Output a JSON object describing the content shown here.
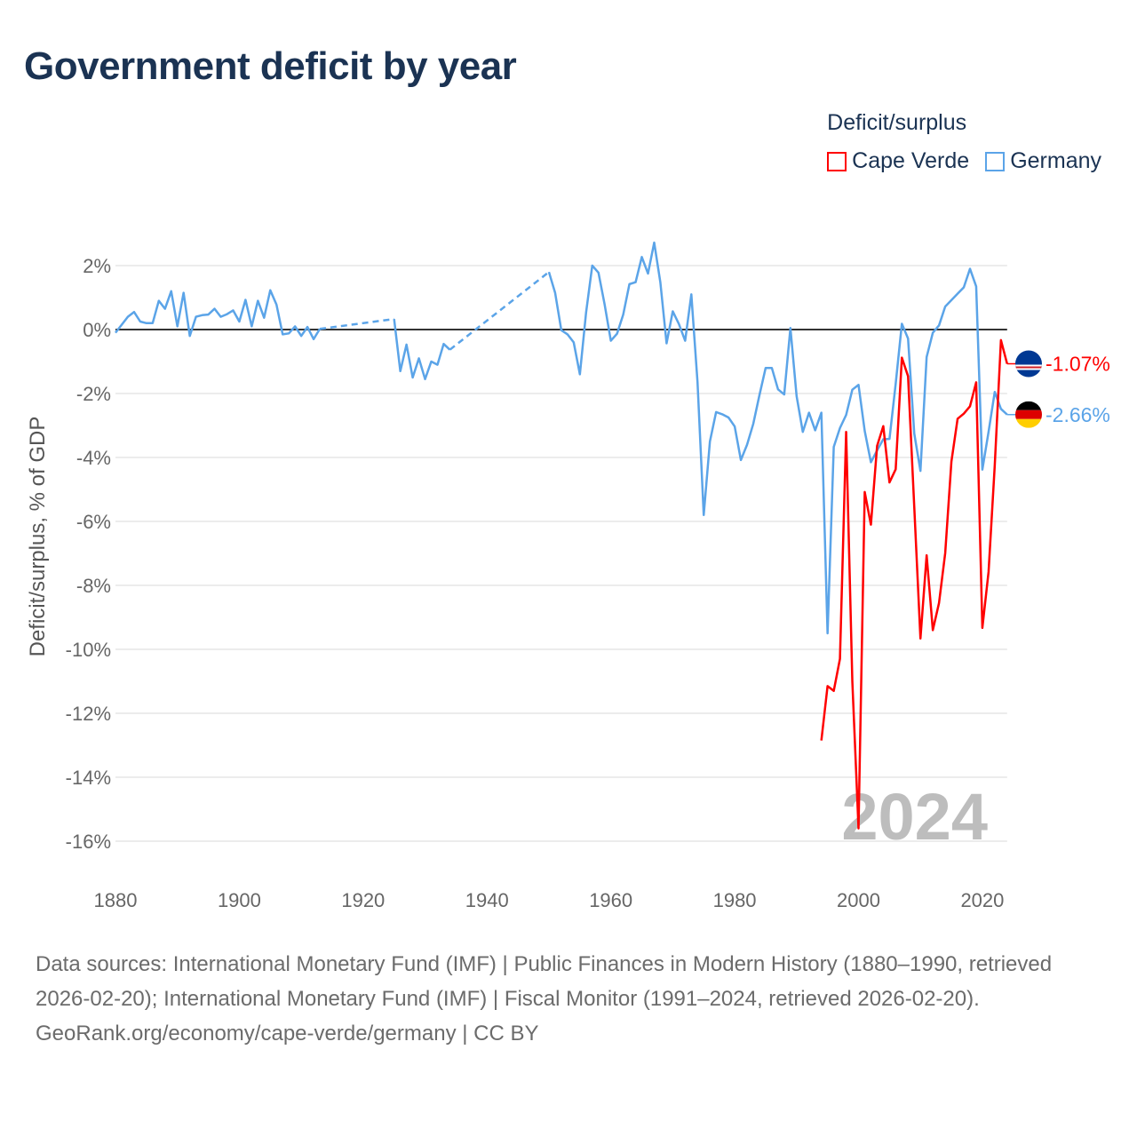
{
  "title": "Government deficit by year",
  "legend": {
    "title": "Deficit/surplus",
    "items": [
      {
        "name": "Cape Verde",
        "color": "#ff0000"
      },
      {
        "name": "Germany",
        "color": "#5ba4e8"
      }
    ]
  },
  "footer": {
    "sources": "Data sources: International Monetary Fund (IMF) | Public Finances in Modern History (1880–1990, retrieved 2026-02-20); International Monetary Fund (IMF) | Fiscal Monitor (1991–2024, retrieved 2026-02-20).",
    "credit": "GeoRank.org/economy/cape-verde/germany | CC BY"
  },
  "chart_data": {
    "type": "line",
    "title": "Government deficit by year",
    "xlabel": "",
    "ylabel": "Deficit/surplus, % of GDP",
    "xlim": [
      1880,
      2024
    ],
    "ylim": [
      -17,
      3
    ],
    "x_ticks": [
      "1880",
      "1900",
      "1920",
      "1940",
      "1960",
      "1980",
      "2000",
      "2020"
    ],
    "y_ticks": [
      "2%",
      "0%",
      "-2%",
      "-4%",
      "-6%",
      "-8%",
      "-10%",
      "-12%",
      "-14%",
      "-16%"
    ],
    "y_tick_values": [
      2,
      0,
      -2,
      -4,
      -6,
      -8,
      -10,
      -12,
      -14,
      -16
    ],
    "grid": true,
    "legend_position": "top-right",
    "year_watermark": "2024",
    "series": [
      {
        "name": "Cape Verde",
        "color": "#ff0000",
        "start_year": 1994,
        "end_label": "-1.07%",
        "flag": "cape-verde",
        "values": [
          -12.85,
          -11.15,
          -11.3,
          -10.3,
          -3.2,
          -11.0,
          -15.6,
          -5.08,
          -6.1,
          -3.64,
          -3.02,
          -4.78,
          -4.37,
          -0.88,
          -1.46,
          -5.54,
          -9.66,
          -7.06,
          -9.4,
          -8.55,
          -6.99,
          -4.13,
          -2.79,
          -2.63,
          -2.4,
          -1.65,
          -9.33,
          -7.58,
          -4.25,
          -0.33,
          -1.07
        ]
      },
      {
        "name": "Germany",
        "color": "#5ba4e8",
        "start_year": 1880,
        "end_label": "-2.66%",
        "flag": "germany",
        "values": [
          -0.1,
          0.15,
          0.4,
          0.55,
          0.25,
          0.2,
          0.2,
          0.9,
          0.65,
          1.2,
          0.1,
          1.15,
          -0.2,
          0.4,
          0.45,
          0.47,
          0.65,
          0.4,
          0.48,
          0.6,
          0.25,
          0.93,
          0.1,
          0.9,
          0.37,
          1.23,
          0.78,
          -0.15,
          -0.12,
          0.1,
          -0.2,
          0.08,
          -0.3,
          0.02,
          null,
          null,
          null,
          null,
          null,
          null,
          null,
          null,
          null,
          null,
          null,
          0.33,
          -1.3,
          -0.47,
          -1.5,
          -0.9,
          -1.55,
          -1.0,
          -1.1,
          -0.45,
          -0.63,
          null,
          null,
          null,
          null,
          null,
          null,
          null,
          null,
          null,
          null,
          null,
          null,
          null,
          null,
          null,
          1.8,
          1.15,
          -0.02,
          -0.15,
          -0.4,
          -1.4,
          0.53,
          2.0,
          1.78,
          0.78,
          -0.35,
          -0.13,
          0.47,
          1.42,
          1.48,
          2.27,
          1.75,
          2.72,
          1.47,
          -0.43,
          0.57,
          0.17,
          -0.35,
          1.1,
          -1.65,
          -5.8,
          -3.5,
          -2.58,
          -2.65,
          -2.75,
          -3.03,
          -4.08,
          -3.6,
          -2.95,
          -2.05,
          -1.2,
          -1.2,
          -1.87,
          -2.03,
          0.05,
          -2.08,
          -3.2,
          -2.6,
          -3.15,
          -2.6,
          -9.5,
          -3.67,
          -3.08,
          -2.67,
          -1.88,
          -1.73,
          -3.17,
          -4.15,
          -3.78,
          -3.43,
          -3.42,
          -1.7,
          0.18,
          -0.28,
          -3.25,
          -4.42,
          -0.86,
          -0.1,
          0.13,
          0.72,
          0.92,
          1.12,
          1.32,
          1.9,
          1.35,
          -4.38,
          -3.2,
          -1.95,
          -2.48,
          -2.66
        ]
      }
    ]
  }
}
